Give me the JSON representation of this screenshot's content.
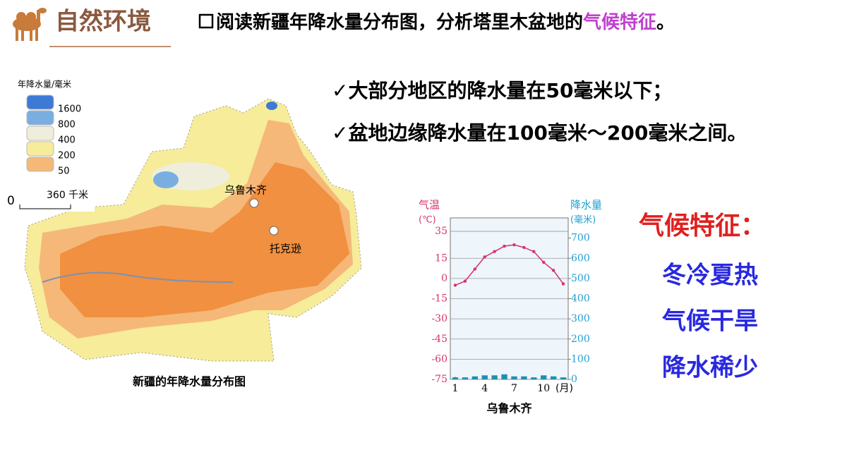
{
  "header": {
    "title": "自然环境",
    "prompt": [
      "阅读新疆年降水量分布图，分析塔里木盆地的",
      "气候特征",
      "。"
    ]
  },
  "points": [
    "大部分地区的降水量在50毫米以下；",
    "盆地边缘降水量在100毫米～200毫米之间。"
  ],
  "map": {
    "legend_title": "年降水量/毫米",
    "legend": [
      {
        "label": "1600",
        "color": "#3d7ad6"
      },
      {
        "label": "800",
        "color": "#7aaee0"
      },
      {
        "label": "400",
        "color": "#efeedc"
      },
      {
        "label": "200",
        "color": "#f6ec9a"
      },
      {
        "label": "50",
        "color": "#f5b878"
      }
    ],
    "scale": [
      "0",
      "360 千米"
    ],
    "cities": [
      "乌鲁木齐",
      "托克逊"
    ],
    "caption": "新疆的年降水量分布图"
  },
  "features": {
    "title": "气候特征：",
    "items": [
      "冬冷夏热",
      "气候干旱",
      "降水稀少"
    ]
  },
  "chart_data": {
    "type": "line",
    "title": "乌鲁木齐",
    "y_label": "气温",
    "y_unit": "(℃)",
    "y2_label": "降水量",
    "y2_unit": "(毫米)",
    "x_unit": "(月)",
    "x": [
      1,
      2,
      3,
      4,
      5,
      6,
      7,
      8,
      9,
      10,
      11,
      12
    ],
    "xlim": [
      0.5,
      12.5
    ],
    "xticks": [
      1,
      4,
      7,
      10
    ],
    "ylim": [
      -75,
      45
    ],
    "yticks": [
      35,
      15,
      0,
      -15,
      -30,
      -45,
      -60,
      -75
    ],
    "y2lim": [
      0,
      800
    ],
    "y2ticks": [
      700,
      600,
      500,
      400,
      300,
      200,
      100,
      0
    ],
    "grid": true,
    "series": [
      {
        "color": "#d6336c",
        "values": [
          -5,
          -2,
          7,
          16,
          20,
          24,
          25,
          23,
          20,
          12,
          6,
          -4
        ]
      },
      {
        "type": "bar",
        "axis": "y2",
        "color": "#1f8fb0",
        "values": [
          10,
          10,
          15,
          20,
          20,
          25,
          15,
          15,
          10,
          20,
          15,
          10
        ]
      }
    ]
  }
}
